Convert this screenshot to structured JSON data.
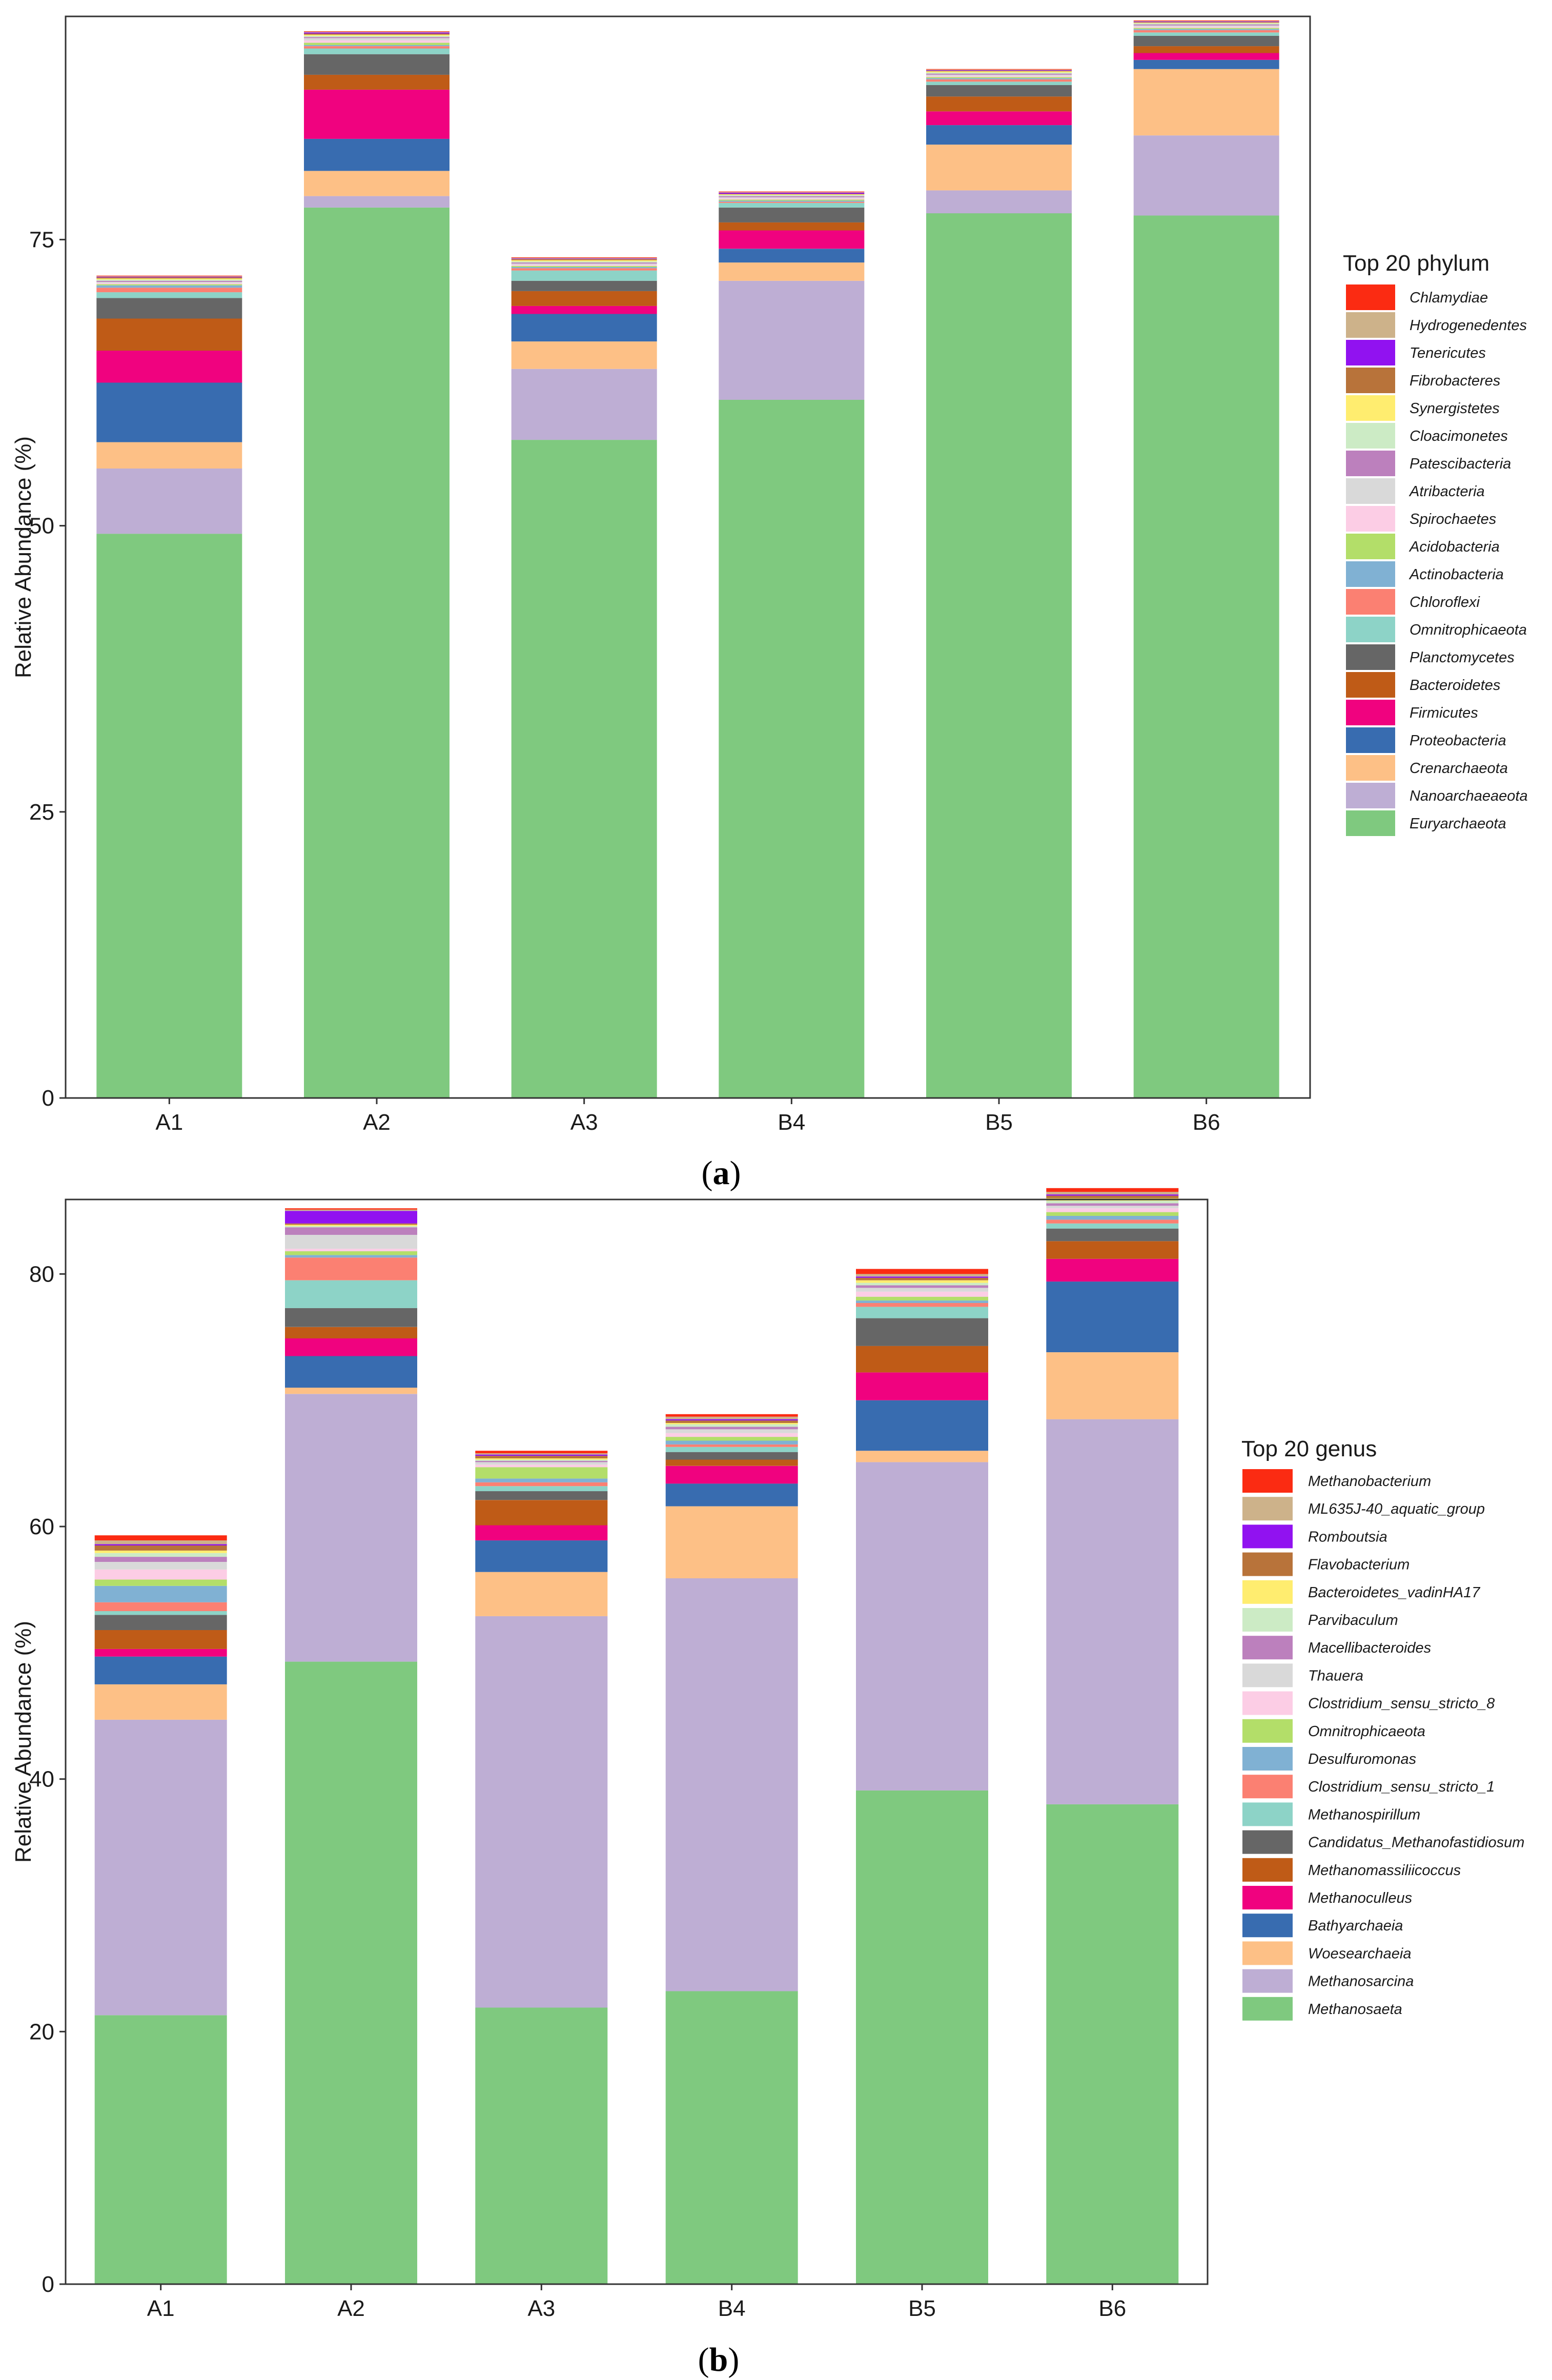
{
  "chart_data": [
    {
      "type": "bar",
      "stacked": true,
      "panel_label": "a",
      "ylabel": "Relative Abundance (%)",
      "xlabel": "",
      "ylim": [
        0,
        94.5
      ],
      "yticks": [
        0,
        25,
        50,
        75
      ],
      "categories": [
        "A1",
        "A2",
        "A3",
        "B4",
        "B5",
        "B6"
      ],
      "legend_title": "Top 20 phylum",
      "series": [
        {
          "name": "Euryarchaeota",
          "color": "#7FC97F",
          "values": [
            49.3,
            77.8,
            57.5,
            61.0,
            77.3,
            77.1
          ]
        },
        {
          "name": "Nanoarchaeaeota",
          "color": "#BEAED4",
          "values": [
            5.7,
            1.0,
            6.2,
            10.4,
            2.0,
            7.0
          ]
        },
        {
          "name": "Crenarchaeota",
          "color": "#FDC086",
          "values": [
            2.3,
            2.2,
            2.4,
            1.6,
            4.0,
            5.8
          ]
        },
        {
          "name": "Proteobacteria",
          "color": "#386CB0",
          "values": [
            5.2,
            2.8,
            2.4,
            1.2,
            1.7,
            0.8
          ]
        },
        {
          "name": "Firmicutes",
          "color": "#F0027F",
          "values": [
            2.8,
            4.3,
            0.7,
            1.6,
            1.2,
            0.6
          ]
        },
        {
          "name": "Bacteroidetes",
          "color": "#BF5B17",
          "values": [
            2.8,
            1.3,
            1.3,
            0.7,
            1.3,
            0.6
          ]
        },
        {
          "name": "Planctomycetes",
          "color": "#666666",
          "values": [
            1.8,
            1.8,
            0.9,
            1.3,
            1.0,
            0.9
          ]
        },
        {
          "name": "Omnitrophicaeota",
          "color": "#8DD3C7",
          "values": [
            0.5,
            0.5,
            0.9,
            0.4,
            0.3,
            0.3
          ]
        },
        {
          "name": "Chloroflexi",
          "color": "#FB8072",
          "values": [
            0.4,
            0.2,
            0.2,
            0.1,
            0.2,
            0.2
          ]
        },
        {
          "name": "Actinobacteria",
          "color": "#80B1D3",
          "values": [
            0.2,
            0.1,
            0.1,
            0.1,
            0.1,
            0.1
          ]
        },
        {
          "name": "Acidobacteria",
          "color": "#B3DE69",
          "values": [
            0.1,
            0.2,
            0.1,
            0.1,
            0.1,
            0.1
          ]
        },
        {
          "name": "Spirochaetes",
          "color": "#FCCDE5",
          "values": [
            0.1,
            0.2,
            0.1,
            0.1,
            0.1,
            0.1
          ]
        },
        {
          "name": "Atribacteria",
          "color": "#D9D9D9",
          "values": [
            0.1,
            0.2,
            0.1,
            0.1,
            0.1,
            0.1
          ]
        },
        {
          "name": "Patescibacteria",
          "color": "#BC80BD",
          "values": [
            0.1,
            0.1,
            0.1,
            0.1,
            0.1,
            0.1
          ]
        },
        {
          "name": "Cloacimonetes",
          "color": "#CCEBC5",
          "values": [
            0.1,
            0.1,
            0.1,
            0.1,
            0.1,
            0.1
          ]
        },
        {
          "name": "Synergistetes",
          "color": "#FFED6F",
          "values": [
            0.1,
            0.1,
            0.1,
            0.05,
            0.1,
            0.05
          ]
        },
        {
          "name": "Fibrobacteres",
          "color": "#B8733A",
          "values": [
            0.1,
            0.1,
            0.1,
            0.05,
            0.05,
            0.05
          ]
        },
        {
          "name": "Tenericutes",
          "color": "#9112F0",
          "values": [
            0.05,
            0.1,
            0.05,
            0.1,
            0.05,
            0.05
          ]
        },
        {
          "name": "Hydrogenedentes",
          "color": "#CDB28A",
          "values": [
            0.05,
            0.05,
            0.05,
            0.05,
            0.05,
            0.05
          ]
        },
        {
          "name": "Chlamydiae",
          "color": "#FB2B12",
          "values": [
            0.05,
            0.05,
            0.05,
            0.05,
            0.05,
            0.05
          ]
        }
      ]
    },
    {
      "type": "bar",
      "stacked": true,
      "panel_label": "b",
      "ylabel": "Relative Abundance (%)",
      "xlabel": "",
      "ylim": [
        0,
        85.9
      ],
      "yticks": [
        0,
        20,
        40,
        60,
        80
      ],
      "categories": [
        "A1",
        "A2",
        "A3",
        "B4",
        "B5",
        "B6"
      ],
      "legend_title": "Top 20 genus",
      "series": [
        {
          "name": "Methanosaeta",
          "color": "#7FC97F",
          "values": [
            21.3,
            49.3,
            21.9,
            23.2,
            39.1,
            38.0
          ]
        },
        {
          "name": "Methanosarcina",
          "color": "#BEAED4",
          "values": [
            23.4,
            21.2,
            31.0,
            32.7,
            26.0,
            30.5
          ]
        },
        {
          "name": "Woesearchaeia",
          "color": "#FDC086",
          "values": [
            2.8,
            0.5,
            3.5,
            5.7,
            0.9,
            5.3
          ]
        },
        {
          "name": "Bathyarchaeia",
          "color": "#386CB0",
          "values": [
            2.2,
            2.5,
            2.5,
            1.8,
            4.0,
            5.6
          ]
        },
        {
          "name": "Methanoculleus",
          "color": "#F0027F",
          "values": [
            0.6,
            1.4,
            1.2,
            1.4,
            2.2,
            1.8
          ]
        },
        {
          "name": "Methanomassiliicoccus",
          "color": "#BF5B17",
          "values": [
            1.5,
            0.9,
            2.0,
            0.5,
            2.1,
            1.4
          ]
        },
        {
          "name": "Candidatus_Methanofastidiosum",
          "color": "#666666",
          "values": [
            1.2,
            1.5,
            0.7,
            0.6,
            2.2,
            1.0
          ]
        },
        {
          "name": "Methanospirillum",
          "color": "#8DD3C7",
          "values": [
            0.3,
            2.2,
            0.4,
            0.4,
            0.9,
            0.4
          ]
        },
        {
          "name": "Clostridium_sensu_stricto_1",
          "color": "#FB8072",
          "values": [
            0.7,
            1.8,
            0.3,
            0.2,
            0.3,
            0.3
          ]
        },
        {
          "name": "Desulfuromonas",
          "color": "#80B1D3",
          "values": [
            1.3,
            0.2,
            0.3,
            0.3,
            0.2,
            0.3
          ]
        },
        {
          "name": "Omnitrophicaeota",
          "color": "#B3DE69",
          "values": [
            0.5,
            0.3,
            0.9,
            0.3,
            0.3,
            0.3
          ]
        },
        {
          "name": "Clostridium_sensu_stricto_8",
          "color": "#FCCDE5",
          "values": [
            0.8,
            0.2,
            0.2,
            0.3,
            0.4,
            0.3
          ]
        },
        {
          "name": "Thauera",
          "color": "#D9D9D9",
          "values": [
            0.6,
            1.1,
            0.2,
            0.3,
            0.3,
            0.2
          ]
        },
        {
          "name": "Macellibacteroides",
          "color": "#BC80BD",
          "values": [
            0.4,
            0.6,
            0.1,
            0.2,
            0.2,
            0.2
          ]
        },
        {
          "name": "Parvibaculum",
          "color": "#CCEBC5",
          "values": [
            0.3,
            0.1,
            0.1,
            0.2,
            0.2,
            0.2
          ]
        },
        {
          "name": "Bacteroidetes_vadinHA17",
          "color": "#FFED6F",
          "values": [
            0.2,
            0.1,
            0.1,
            0.1,
            0.2,
            0.2
          ]
        },
        {
          "name": "Flavobacterium",
          "color": "#B8733A",
          "values": [
            0.4,
            0.1,
            0.2,
            0.2,
            0.2,
            0.2
          ]
        },
        {
          "name": "Romboutsia",
          "color": "#9112F0",
          "values": [
            0.1,
            1.0,
            0.1,
            0.1,
            0.1,
            0.1
          ]
        },
        {
          "name": "ML635J-40_aquatic_group",
          "color": "#CDB28A",
          "values": [
            0.3,
            0.1,
            0.1,
            0.2,
            0.2,
            0.2
          ]
        },
        {
          "name": "Methanobacterium",
          "color": "#FB2B12",
          "values": [
            0.4,
            0.1,
            0.2,
            0.2,
            0.4,
            0.3
          ]
        }
      ]
    }
  ]
}
